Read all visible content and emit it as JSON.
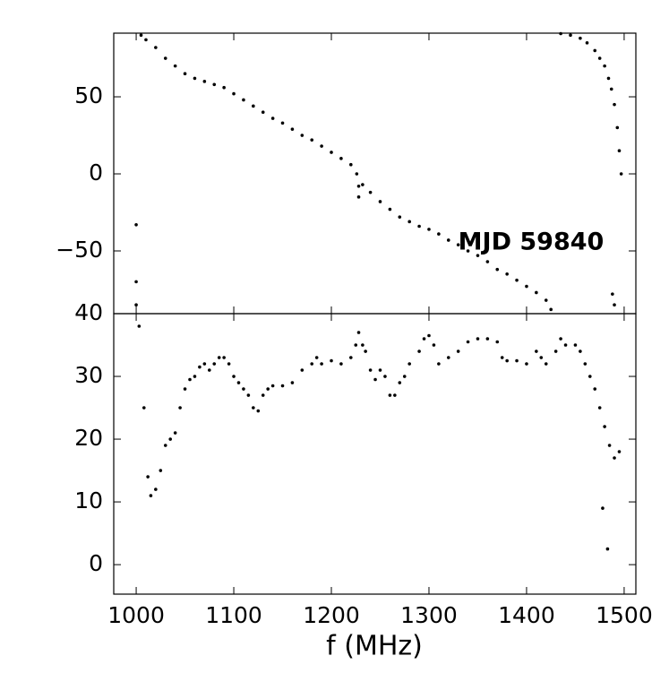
{
  "chart_data": [
    {
      "type": "scatter",
      "annotation": "MJD 59840",
      "color": "#000000",
      "xlim": [
        977,
        1512
      ],
      "xticks": [
        1000,
        1100,
        1200,
        1300,
        1400,
        1500
      ],
      "ylim": [
        -90.7,
        91.3
      ],
      "yticks": [
        50,
        0,
        {
          "value": -50,
          "label": "−50"
        }
      ],
      "x": [
        1000,
        1000,
        1000,
        1005,
        1010,
        1020,
        1030,
        1040,
        1050,
        1060,
        1070,
        1080,
        1090,
        1100,
        1110,
        1120,
        1130,
        1140,
        1150,
        1160,
        1170,
        1180,
        1190,
        1200,
        1210,
        1220,
        1226,
        1228,
        1228,
        1232,
        1240,
        1250,
        1260,
        1270,
        1280,
        1290,
        1300,
        1310,
        1320,
        1330,
        1340,
        1350,
        1360,
        1370,
        1380,
        1390,
        1400,
        1410,
        1420,
        1425,
        1435,
        1445,
        1455,
        1462,
        1470,
        1475,
        1480,
        1484,
        1487,
        1490,
        1493,
        1495,
        1497,
        1488,
        1490
      ],
      "values": [
        -33,
        -70,
        -85,
        90,
        87,
        82,
        75,
        70,
        65,
        62,
        60,
        58,
        56,
        52,
        48,
        44,
        40,
        36,
        33,
        29,
        25,
        22,
        18,
        14,
        10,
        6,
        0,
        -8,
        -15,
        -7,
        -12,
        -18,
        -23,
        -28,
        -31,
        -34,
        -36,
        -39,
        -43,
        -46,
        -50,
        -53,
        -57,
        -62,
        -65,
        -69,
        -73,
        -77,
        -82,
        -88,
        91,
        90,
        88,
        85,
        80,
        75,
        70,
        62,
        55,
        45,
        30,
        15,
        0,
        -78,
        -85
      ]
    },
    {
      "type": "scatter",
      "xlabel": "f (MHz)",
      "color": "#000000",
      "xlim": [
        977,
        1512
      ],
      "xticks": [
        1000,
        1100,
        1200,
        1300,
        1400,
        1500
      ],
      "ylim": [
        -4.7,
        40
      ],
      "yticks": [
        0,
        10,
        20,
        30,
        40
      ],
      "x": [
        1003,
        1008,
        1012,
        1015,
        1020,
        1025,
        1030,
        1035,
        1040,
        1045,
        1050,
        1055,
        1060,
        1065,
        1070,
        1075,
        1080,
        1085,
        1090,
        1095,
        1100,
        1105,
        1110,
        1115,
        1120,
        1125,
        1130,
        1135,
        1140,
        1150,
        1160,
        1170,
        1180,
        1185,
        1190,
        1200,
        1210,
        1220,
        1225,
        1228,
        1232,
        1235,
        1240,
        1245,
        1250,
        1255,
        1260,
        1265,
        1270,
        1275,
        1280,
        1290,
        1295,
        1300,
        1305,
        1310,
        1320,
        1330,
        1340,
        1350,
        1360,
        1370,
        1375,
        1380,
        1390,
        1400,
        1410,
        1415,
        1420,
        1430,
        1435,
        1440,
        1450,
        1455,
        1460,
        1465,
        1470,
        1475,
        1480,
        1485,
        1490,
        1495,
        1478,
        1483
      ],
      "values": [
        38,
        25,
        14,
        11,
        12,
        15,
        19,
        20,
        21,
        25,
        28,
        29.5,
        30,
        31.5,
        32,
        31,
        32,
        33,
        33,
        32,
        30,
        29,
        28,
        27,
        25,
        24.5,
        27,
        28,
        28.5,
        28.5,
        29,
        31,
        32,
        33,
        32,
        32.5,
        32,
        33,
        35,
        37,
        35,
        34,
        31,
        29.5,
        31,
        30,
        27,
        27,
        29,
        30,
        32,
        34,
        36,
        36.5,
        35,
        32,
        33,
        34,
        35.5,
        36,
        36,
        35.5,
        33,
        32.5,
        32.5,
        32,
        34,
        33,
        32,
        34,
        36,
        35,
        35,
        34,
        32,
        30,
        28,
        25,
        22,
        19,
        17,
        18,
        9,
        2.5
      ]
    }
  ]
}
